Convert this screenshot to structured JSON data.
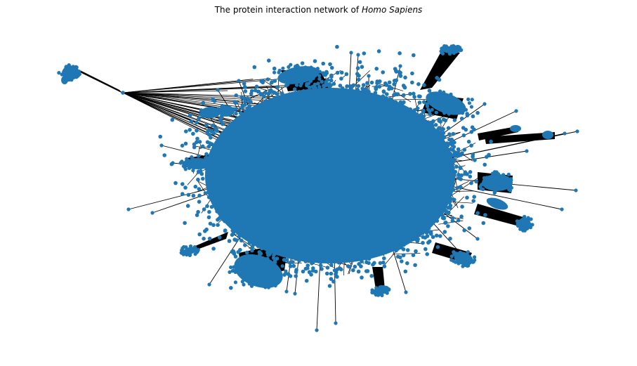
{
  "title": {
    "prefix": "The protein interaction network of ",
    "species": "Homo Sapiens"
  },
  "style": {
    "node_color": "#1f77b4",
    "edge_color": "#000000",
    "background": "#ffffff"
  }
}
